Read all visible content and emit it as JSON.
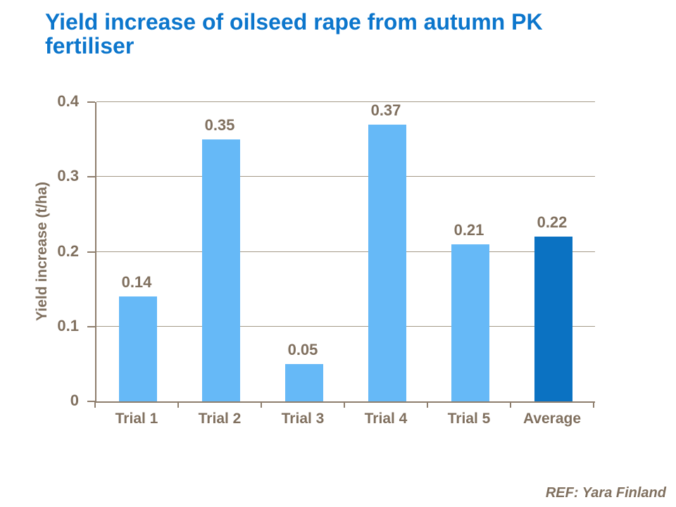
{
  "footer": {
    "ref": "REF: Yara Finland"
  },
  "colors": {
    "title": "#0C76CC",
    "axis_text": "#80705F",
    "gridline": "#A59A88",
    "axis_line": "#8E7E6D",
    "bar_light": "#66B9F7",
    "bar_dark": "#0B72C2",
    "background": "#FFFFFF"
  },
  "chart_data": {
    "type": "bar",
    "title": "Yield increase of oilseed rape from autumn PK fertiliser",
    "categories": [
      "Trial 1",
      "Trial 2",
      "Trial 3",
      "Trial 4",
      "Trial 5",
      "Average"
    ],
    "values": [
      0.14,
      0.35,
      0.05,
      0.37,
      0.21,
      0.22
    ],
    "data_labels": [
      "0.14",
      "0.35",
      "0.05",
      "0.37",
      "0.21",
      "0.22"
    ],
    "bar_colors": [
      "#66B9F7",
      "#66B9F7",
      "#66B9F7",
      "#66B9F7",
      "#66B9F7",
      "#0B72C2"
    ],
    "xlabel": "",
    "ylabel": "Yield increase (t/ha)",
    "ylim": [
      0,
      0.4
    ],
    "yticks": [
      0,
      0.1,
      0.2,
      0.3,
      0.4
    ],
    "ytick_labels": [
      "0",
      "0.1",
      "0.2",
      "0.3",
      "0.4"
    ],
    "grid": true,
    "legend": "none",
    "annotation": "REF: Yara Finland"
  }
}
